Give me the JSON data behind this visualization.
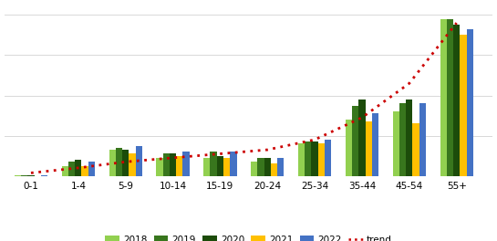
{
  "categories": [
    "0-1",
    "1-4",
    "5-9",
    "10-14",
    "15-19",
    "20-24",
    "25-34",
    "35-44",
    "45-54",
    "55+"
  ],
  "years": [
    "2018",
    "2019",
    "2020",
    "2021",
    "2022"
  ],
  "colors": {
    "2018": "#92d050",
    "2019": "#38761d",
    "2020": "#1c4c0a",
    "2021": "#ffc000",
    "2022": "#4472c4"
  },
  "values": {
    "2018": [
      0.5,
      5,
      13,
      9,
      9,
      7,
      16,
      28,
      32,
      78
    ],
    "2019": [
      0.5,
      7,
      14,
      11,
      12,
      9,
      17,
      35,
      36,
      78
    ],
    "2020": [
      0.5,
      8,
      13,
      11,
      10,
      9,
      17,
      38,
      38,
      75
    ],
    "2021": [
      0,
      5,
      11,
      10,
      9,
      6,
      16,
      27,
      26,
      70
    ],
    "2022": [
      0.5,
      7,
      15,
      12,
      12,
      9,
      18,
      31,
      36,
      73
    ]
  },
  "trend_y": [
    1.5,
    4,
    7,
    9,
    11,
    13,
    18,
    29,
    46,
    76
  ],
  "trend_color": "#cc0000",
  "bg_color": "#ffffff",
  "grid_color": "#d8d8d8",
  "ylim": [
    0,
    85
  ],
  "bar_width": 0.14,
  "xlim_left": -0.55,
  "xlim_right": 9.75
}
